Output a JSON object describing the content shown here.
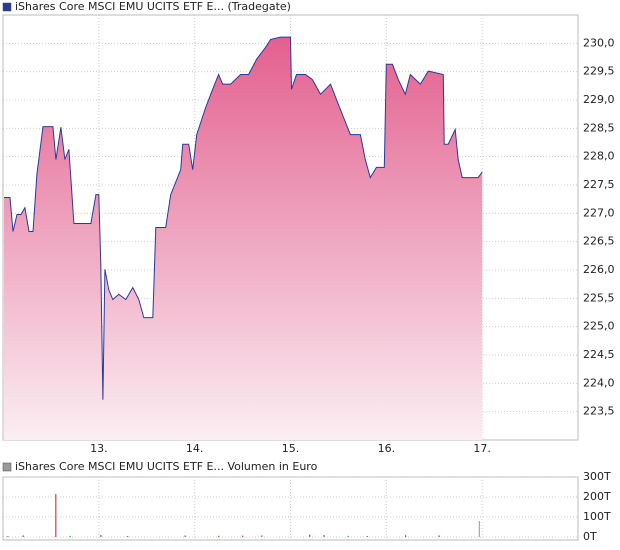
{
  "chart_data": [
    {
      "type": "area",
      "title": "iShares Core MSCI EMU UCITS ETF E... (Tradegate)",
      "color": "#2a3a9a",
      "fill_top": "#e3608e",
      "fill_bottom": "#fbeef3",
      "grid": true,
      "xlim": [
        12,
        18
      ],
      "xticks": [
        {
          "value": 13,
          "label": "13."
        },
        {
          "value": 14,
          "label": "14."
        },
        {
          "value": 15,
          "label": "15."
        },
        {
          "value": 16,
          "label": "16."
        },
        {
          "value": 17,
          "label": "17."
        }
      ],
      "ylim": [
        223.0,
        230.5
      ],
      "yticks": [
        {
          "value": 223.5,
          "label": "223,5"
        },
        {
          "value": 224,
          "label": "224,0"
        },
        {
          "value": 224.5,
          "label": "224,5"
        },
        {
          "value": 225,
          "label": "225,0"
        },
        {
          "value": 225.5,
          "label": "225,5"
        },
        {
          "value": 226,
          "label": "226,0"
        },
        {
          "value": 226.5,
          "label": "226,5"
        },
        {
          "value": 227,
          "label": "227,0"
        },
        {
          "value": 227.5,
          "label": "227,5"
        },
        {
          "value": 228,
          "label": "228,0"
        },
        {
          "value": 228.5,
          "label": "228,5"
        },
        {
          "value": 229,
          "label": "229,0"
        },
        {
          "value": 229.5,
          "label": "229,5"
        },
        {
          "value": 230,
          "label": "230,0"
        }
      ],
      "x": [
        12.01,
        12.073,
        12.104,
        12.146,
        12.188,
        12.229,
        12.271,
        12.313,
        12.354,
        12.417,
        12.521,
        12.552,
        12.604,
        12.646,
        12.688,
        12.74,
        12.917,
        12.969,
        13.0,
        13.021,
        13.042,
        13.063,
        13.104,
        13.146,
        13.208,
        13.281,
        13.354,
        13.417,
        13.469,
        13.563,
        13.594,
        13.698,
        13.75,
        13.854,
        13.875,
        13.938,
        13.979,
        14.021,
        14.115,
        14.188,
        14.25,
        14.292,
        14.375,
        14.479,
        14.563,
        14.646,
        14.74,
        14.792,
        14.896,
        15.0,
        15.01,
        15.063,
        15.156,
        15.229,
        15.313,
        15.417,
        15.521,
        15.625,
        15.729,
        15.781,
        15.833,
        15.896,
        15.979,
        16.0,
        16.063,
        16.125,
        16.198,
        16.25,
        16.354,
        16.438,
        16.594,
        16.604,
        16.646,
        16.719,
        16.75,
        16.792,
        16.958,
        17.0
      ],
      "values": [
        227.28,
        227.28,
        226.68,
        226.98,
        226.98,
        227.1,
        226.68,
        226.68,
        227.69,
        228.53,
        228.53,
        227.95,
        228.52,
        227.95,
        228.13,
        226.82,
        226.82,
        227.33,
        227.33,
        226.1,
        223.71,
        226.01,
        225.65,
        225.48,
        225.57,
        225.48,
        225.69,
        225.48,
        225.16,
        225.16,
        226.75,
        226.75,
        227.33,
        227.77,
        228.22,
        228.22,
        227.77,
        228.39,
        228.87,
        229.19,
        229.45,
        229.28,
        229.28,
        229.45,
        229.45,
        229.72,
        229.93,
        230.07,
        230.11,
        230.11,
        229.19,
        229.45,
        229.45,
        229.36,
        229.1,
        229.28,
        228.83,
        228.39,
        228.39,
        227.95,
        227.63,
        227.81,
        227.81,
        229.63,
        229.63,
        229.36,
        229.1,
        229.45,
        229.28,
        229.51,
        229.45,
        228.22,
        228.22,
        228.48,
        227.95,
        227.63,
        227.63,
        227.73
      ]
    },
    {
      "type": "bar",
      "title": "iShares Core MSCI EMU UCITS ETF E... Volumen in Euro",
      "color": "#999999",
      "grid": true,
      "xlim": [
        12,
        18
      ],
      "ylim": [
        0,
        300
      ],
      "yticks": [
        {
          "value": 0,
          "label": "0T"
        },
        {
          "value": 100,
          "label": "100T"
        },
        {
          "value": 200,
          "label": "200T"
        },
        {
          "value": 300,
          "label": "300T"
        }
      ],
      "x": [
        12.05,
        12.21,
        12.55,
        12.7,
        13.02,
        13.3,
        13.9,
        14.25,
        14.5,
        14.7,
        15.2,
        15.35,
        15.6,
        15.8,
        16.2,
        16.55,
        16.97
      ],
      "values": [
        5,
        8,
        215,
        6,
        10,
        5,
        8,
        6,
        7,
        8,
        12,
        10,
        6,
        5,
        9,
        8,
        80
      ],
      "colors": [
        "#2a9a2a",
        "#2a9a2a",
        "#d04040",
        "#2a9a2a",
        "#d04040",
        "#d04040",
        "#2a9a2a",
        "#2a9a2a",
        "#d04040",
        "#2a9a2a",
        "#d04040",
        "#d04040",
        "#2a9a2a",
        "#d04040",
        "#2a9a2a",
        "#d04040",
        "#aaaaaa"
      ]
    }
  ]
}
